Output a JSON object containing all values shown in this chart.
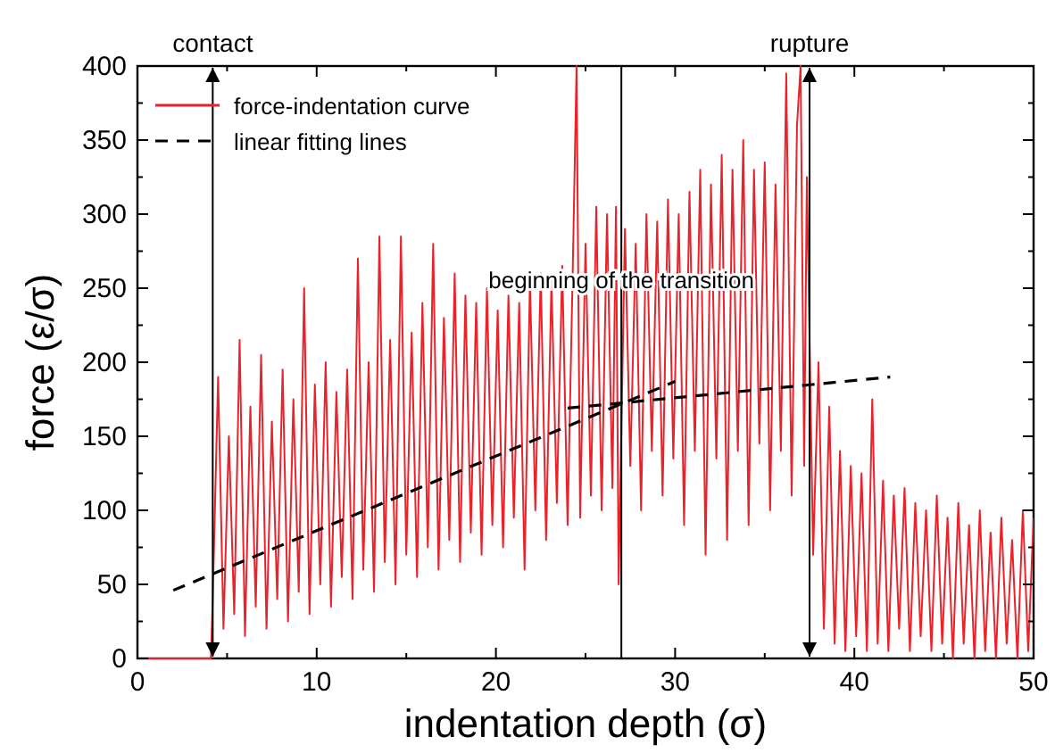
{
  "chart_data": {
    "type": "line",
    "xlabel": "indentation depth  (σ)",
    "ylabel": "force (ε/σ)",
    "xlim": [
      0,
      50
    ],
    "ylim": [
      0,
      400
    ],
    "xticks": [
      0,
      {
        "value": 5,
        "label": null
      },
      10,
      {
        "value": 15,
        "label": null
      },
      20,
      {
        "value": 25,
        "label": null
      },
      30,
      {
        "value": 35,
        "label": null
      },
      40,
      {
        "value": 45,
        "label": null
      },
      50
    ],
    "yticks": [
      0,
      {
        "value": 25,
        "label": null
      },
      50,
      {
        "value": 75,
        "label": null
      },
      100,
      {
        "value": 125,
        "label": null
      },
      150,
      {
        "value": 175,
        "label": null
      },
      200,
      {
        "value": 225,
        "label": null
      },
      250,
      {
        "value": 275,
        "label": null
      },
      300,
      {
        "value": 325,
        "label": null
      },
      350,
      {
        "value": 375,
        "label": null
      },
      400
    ],
    "legend": "top left",
    "grid": false,
    "marker": "none",
    "series": [
      {
        "name": "force-indentation curve",
        "color": "#e8232b",
        "line_style": "solid",
        "x": [
          0,
          4.1,
          4.2,
          4.5,
          4.8,
          5.1,
          5.4,
          5.7,
          6.0,
          6.3,
          6.6,
          6.9,
          7.2,
          7.5,
          7.8,
          8.1,
          8.4,
          8.7,
          9.0,
          9.3,
          9.6,
          9.9,
          10.2,
          10.5,
          10.8,
          11.1,
          11.4,
          11.7,
          12.0,
          12.3,
          12.6,
          12.9,
          13.2,
          13.5,
          13.8,
          14.1,
          14.4,
          14.7,
          15.0,
          15.3,
          15.6,
          15.9,
          16.2,
          16.5,
          16.8,
          17.1,
          17.4,
          17.7,
          18.0,
          18.3,
          18.6,
          18.9,
          19.2,
          19.5,
          19.8,
          20.1,
          20.4,
          20.7,
          21.0,
          21.3,
          21.6,
          21.9,
          22.2,
          22.5,
          22.8,
          23.1,
          23.4,
          23.7,
          24.0,
          24.3,
          24.5,
          24.7,
          25.0,
          25.3,
          25.6,
          25.9,
          26.2,
          26.5,
          26.7,
          26.85,
          27.2,
          27.5,
          27.8,
          28.1,
          28.4,
          28.7,
          29.0,
          29.3,
          29.6,
          29.9,
          30.2,
          30.5,
          30.8,
          31.1,
          31.4,
          31.7,
          32.0,
          32.3,
          32.6,
          32.9,
          33.2,
          33.5,
          33.8,
          34.1,
          34.4,
          34.7,
          35.0,
          35.3,
          35.6,
          35.9,
          36.2,
          36.5,
          36.8,
          37.0,
          37.2,
          37.35,
          37.7,
          38.0,
          38.3,
          38.6,
          38.9,
          39.2,
          39.5,
          39.8,
          40.1,
          40.4,
          40.7,
          41.0,
          41.3,
          41.6,
          41.9,
          42.2,
          42.5,
          42.8,
          43.1,
          43.4,
          43.7,
          44.0,
          44.3,
          44.6,
          44.9,
          45.2,
          45.5,
          45.8,
          46.1,
          46.4,
          46.7,
          47.0,
          47.3,
          47.6,
          47.9,
          48.2,
          48.5,
          48.8,
          49.1,
          49.4,
          49.7,
          50.0
        ],
        "values": [
          0,
          0,
          40,
          190,
          20,
          150,
          30,
          215,
          15,
          170,
          35,
          205,
          20,
          160,
          40,
          195,
          25,
          175,
          45,
          250,
          30,
          185,
          50,
          200,
          35,
          180,
          55,
          195,
          40,
          270,
          60,
          200,
          45,
          285,
          65,
          215,
          50,
          285,
          70,
          220,
          55,
          240,
          75,
          280,
          60,
          230,
          80,
          260,
          65,
          245,
          85,
          240,
          70,
          250,
          90,
          235,
          75,
          245,
          95,
          240,
          60,
          255,
          100,
          260,
          80,
          255,
          105,
          265,
          90,
          270,
          400,
          95,
          280,
          110,
          305,
          100,
          300,
          115,
          305,
          50,
          290,
          130,
          280,
          100,
          300,
          140,
          295,
          110,
          310,
          135,
          300,
          90,
          315,
          140,
          330,
          70,
          320,
          135,
          340,
          80,
          330,
          140,
          350,
          90,
          330,
          145,
          335,
          100,
          320,
          140,
          395,
          110,
          360,
          400,
          130,
          325,
          70,
          200,
          20,
          170,
          10,
          140,
          5,
          130,
          15,
          125,
          5,
          175,
          10,
          120,
          5,
          110,
          20,
          115,
          5,
          105,
          15,
          100,
          5,
          110,
          10,
          95,
          0,
          105,
          10,
          90,
          0,
          100,
          5,
          85,
          0,
          95,
          10,
          80,
          0,
          100,
          5,
          95
        ]
      },
      {
        "name": "linear fitting lines",
        "color": "#000000",
        "line_style": "dashed",
        "x": [
          2,
          30
        ],
        "values": [
          46,
          187
        ]
      },
      {
        "color": "#000000",
        "line_style": "dashed",
        "x": [
          24,
          42
        ],
        "values": [
          169,
          190
        ]
      }
    ],
    "ref_lines": [
      {
        "axis": "x",
        "value": 4.2,
        "label": "contact",
        "color": "#000000"
      },
      {
        "axis": "x",
        "value": 27,
        "color": "#000000"
      },
      {
        "axis": "x",
        "value": 37.5,
        "label": "rupture",
        "color": "#000000"
      }
    ],
    "annotations": [
      {
        "text": "beginning of the transition",
        "x": 27,
        "y": 250
      }
    ]
  }
}
